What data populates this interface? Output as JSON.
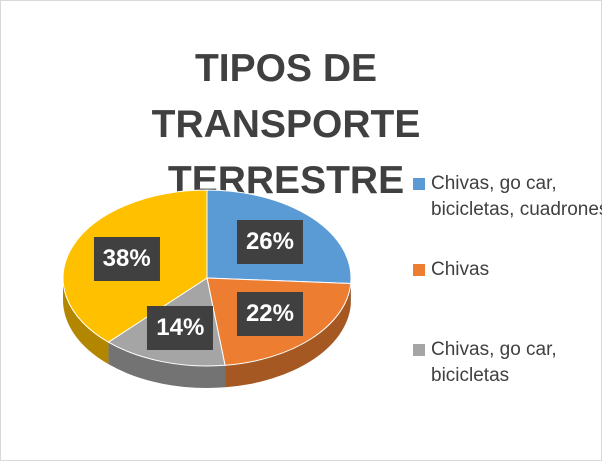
{
  "chart_data": {
    "type": "pie",
    "title": "TIPOS DE TRANSPORTE TERRESTRE",
    "categories": [
      "Chivas, go car, bicicletas, cuadrones",
      "Chivas",
      "Chivas, go car, bicicletas",
      null
    ],
    "values": [
      26,
      22,
      14,
      38
    ],
    "value_labels": [
      "26%",
      "22%",
      "14%",
      "38%"
    ],
    "colors": [
      "#5b9bd5",
      "#ed7d31",
      "#a5a5a5",
      "#ffc000"
    ],
    "legend": "right"
  }
}
